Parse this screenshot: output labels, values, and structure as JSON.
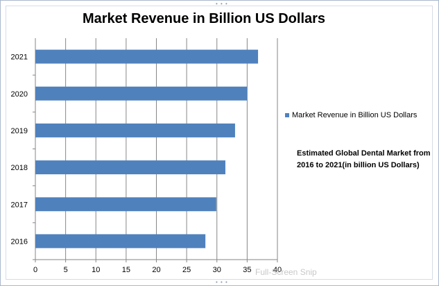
{
  "chart_data": {
    "type": "bar",
    "orientation": "horizontal",
    "title": "Market Revenue in Billion US Dollars",
    "categories": [
      "2016",
      "2017",
      "2018",
      "2019",
      "2020",
      "2021"
    ],
    "series": [
      {
        "name": "Market Revenue in Billion US Dollars",
        "values": [
          28.1,
          29.9,
          31.4,
          33.0,
          35.0,
          36.8
        ],
        "color": "#4f81bd"
      }
    ],
    "x_ticks": [
      "0",
      "5",
      "10",
      "15",
      "20",
      "25",
      "30",
      "35",
      "40"
    ],
    "xlim": [
      0,
      40
    ],
    "grid": true,
    "legend_position": "right"
  },
  "annotation": "Estimated Global Dental Market from 2016 to 2021(in billion US Dollars)",
  "overlay": {
    "snip_text": "Full-Screen Snip"
  }
}
